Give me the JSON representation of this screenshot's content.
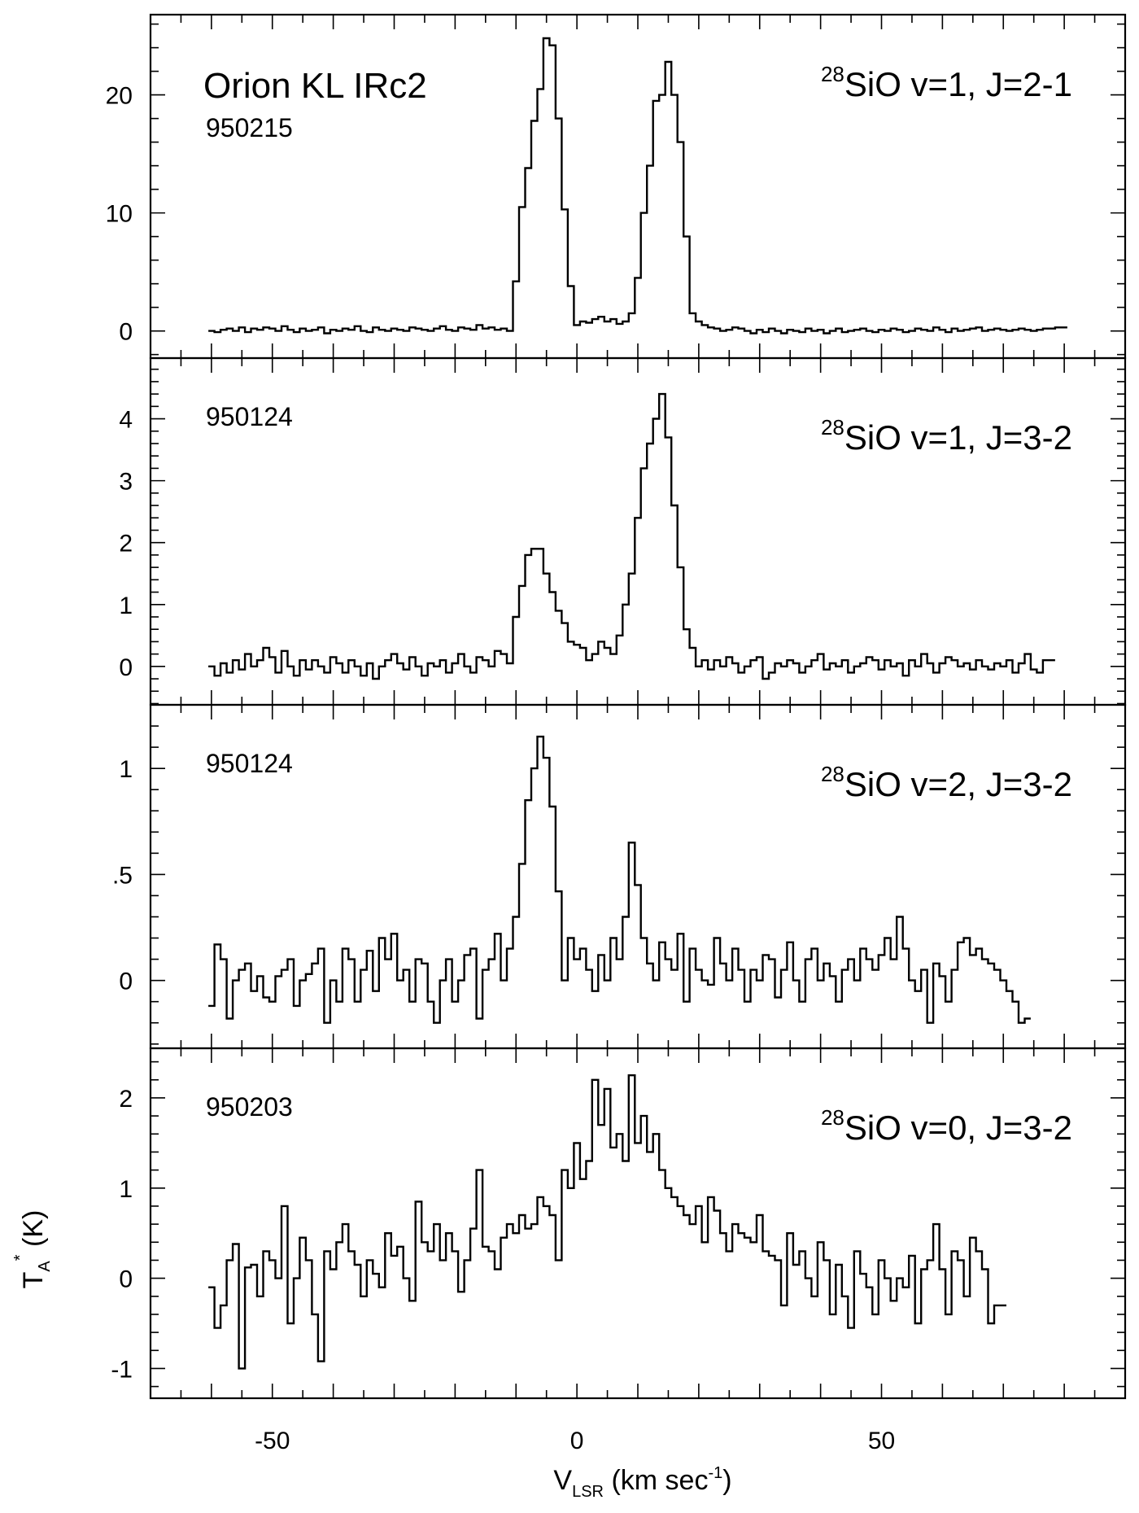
{
  "chart_data": {
    "type": "line",
    "x_axis": {
      "label_main": "V",
      "label_sub": "LSR",
      "label_rest": " (km sec",
      "label_exp": "-1",
      "label_close": ")",
      "range": [
        -70,
        90
      ],
      "tick_labels": [
        "-50",
        "0",
        "50"
      ],
      "tick_values": [
        -50,
        0,
        50
      ],
      "minor_step": 5
    },
    "y_axis_label": {
      "main": "T",
      "sub": "A",
      "sup": "*",
      "rest": " (K)"
    },
    "panels": [
      {
        "title": "Orion KL IRc2",
        "date": "950215",
        "line_iso": "28",
        "line_text": "SiO v=1, J=2-1",
        "ylim": [
          -2.3,
          26.8
        ],
        "y_ticks": [
          0,
          10,
          20
        ],
        "y_tick_labels": [
          "0",
          "10",
          "20"
        ],
        "y_minor_step": 2,
        "series": {
          "x_start": -60,
          "x_step": 1,
          "values": [
            0.0,
            -0.1,
            0.1,
            0.2,
            0.0,
            0.3,
            -0.1,
            0.2,
            0.1,
            0.3,
            0.2,
            0.0,
            0.4,
            0.1,
            -0.1,
            0.2,
            0.0,
            0.1,
            0.3,
            -0.2,
            0.1,
            0.0,
            0.2,
            0.1,
            0.4,
            0.0,
            -0.1,
            0.3,
            0.1,
            0.0,
            0.2,
            0.1,
            0.0,
            0.3,
            0.2,
            0.1,
            0.0,
            0.2,
            0.4,
            0.1,
            0.0,
            0.3,
            0.2,
            0.1,
            0.5,
            0.2,
            0.3,
            0.1,
            0.2,
            0.0,
            4.2,
            10.5,
            13.8,
            17.8,
            20.5,
            24.8,
            24.2,
            18.0,
            10.3,
            3.8,
            0.5,
            0.8,
            0.7,
            1.0,
            1.2,
            0.8,
            1.0,
            0.6,
            0.8,
            1.5,
            4.5,
            10.0,
            14.0,
            19.5,
            20.0,
            22.8,
            20.0,
            16.0,
            8.0,
            1.5,
            0.8,
            0.5,
            0.3,
            0.2,
            0.0,
            0.1,
            0.3,
            0.2,
            0.0,
            -0.2,
            0.1,
            -0.1,
            0.2,
            0.0,
            -0.2,
            0.1,
            0.0,
            -0.1,
            0.2,
            0.0,
            0.1,
            -0.2,
            0.0,
            0.2,
            -0.1,
            0.0,
            0.1,
            0.2,
            0.0,
            -0.1,
            0.1,
            0.0,
            0.2,
            0.1,
            -0.1,
            0.0,
            0.2,
            0.1,
            0.0,
            0.3,
            0.1,
            -0.1,
            0.2,
            0.0,
            0.1,
            0.2,
            0.3,
            0.0,
            0.1,
            0.2,
            0.1,
            0.0,
            0.1,
            0.2,
            0.1,
            0.0,
            0.1,
            0.2,
            0.2,
            0.3,
            0.3
          ]
        }
      },
      {
        "title": "",
        "date": "950124",
        "line_iso": "28",
        "line_text": "SiO v=1, J=3-2",
        "ylim": [
          -0.62,
          4.98
        ],
        "y_ticks": [
          0,
          1,
          2,
          3,
          4
        ],
        "y_tick_labels": [
          "0",
          "1",
          "2",
          "3",
          "4"
        ],
        "y_minor_step": 0.2,
        "series": {
          "x_start": -60,
          "x_step": 1,
          "values": [
            0.0,
            -0.15,
            0.05,
            -0.1,
            0.1,
            -0.05,
            0.2,
            0.0,
            0.1,
            0.3,
            0.15,
            -0.1,
            0.25,
            0.0,
            -0.15,
            0.1,
            -0.05,
            0.1,
            0.0,
            -0.1,
            0.15,
            0.05,
            -0.1,
            0.1,
            0.0,
            -0.15,
            0.05,
            -0.2,
            0.0,
            0.1,
            0.2,
            0.05,
            -0.05,
            0.15,
            0.0,
            -0.15,
            0.05,
            0.0,
            0.1,
            -0.1,
            0.05,
            0.2,
            0.0,
            -0.1,
            0.15,
            0.1,
            0.0,
            0.25,
            0.2,
            0.05,
            0.8,
            1.3,
            1.8,
            1.9,
            1.9,
            1.5,
            1.2,
            0.9,
            0.7,
            0.4,
            0.35,
            0.3,
            0.1,
            0.2,
            0.4,
            0.3,
            0.2,
            0.5,
            1.0,
            1.5,
            2.4,
            3.2,
            3.6,
            4.0,
            4.4,
            3.7,
            2.6,
            1.6,
            0.6,
            0.3,
            0.0,
            0.1,
            -0.05,
            0.1,
            0.0,
            0.15,
            0.05,
            -0.1,
            0.0,
            0.1,
            0.15,
            -0.2,
            -0.1,
            0.05,
            0.0,
            0.1,
            0.05,
            -0.1,
            0.0,
            0.1,
            0.2,
            -0.05,
            0.05,
            0.0,
            0.1,
            -0.1,
            0.0,
            0.05,
            0.15,
            0.1,
            -0.05,
            0.1,
            0.0,
            0.05,
            -0.15,
            0.1,
            0.0,
            0.2,
            0.05,
            -0.1,
            0.05,
            0.15,
            0.1,
            0.0,
            0.05,
            -0.05,
            0.1,
            0.0,
            -0.05,
            0.05,
            0.0,
            0.1,
            -0.1,
            0.05,
            0.2,
            -0.05,
            -0.1,
            0.1,
            0.1
          ]
        }
      },
      {
        "title": "",
        "date": "950124",
        "line_iso": "28",
        "line_text": "SiO v=2, J=3-2",
        "ylim": [
          -0.32,
          1.3
        ],
        "y_ticks": [
          0,
          0.5,
          1
        ],
        "y_tick_labels": [
          "0",
          ".5",
          "1"
        ],
        "y_minor_step": 0.1,
        "series": {
          "x_start": -60,
          "x_step": 1,
          "values": [
            -0.12,
            0.17,
            0.1,
            -0.18,
            0.0,
            0.05,
            0.08,
            -0.05,
            0.02,
            -0.08,
            -0.1,
            0.02,
            0.05,
            0.1,
            -0.12,
            0.0,
            0.03,
            0.08,
            0.15,
            -0.2,
            0.0,
            -0.1,
            0.15,
            0.1,
            -0.1,
            0.05,
            0.14,
            -0.05,
            0.2,
            0.1,
            0.22,
            0.0,
            0.05,
            -0.1,
            0.1,
            0.08,
            -0.1,
            -0.2,
            0.0,
            0.1,
            -0.1,
            0.0,
            0.12,
            0.15,
            -0.18,
            0.05,
            0.1,
            0.22,
            0.0,
            0.15,
            0.3,
            0.55,
            0.85,
            1.0,
            1.15,
            1.05,
            0.82,
            0.42,
            0.0,
            0.2,
            0.1,
            0.15,
            0.05,
            -0.05,
            0.12,
            0.0,
            0.2,
            0.1,
            0.3,
            0.65,
            0.45,
            0.2,
            0.08,
            0.0,
            0.18,
            0.1,
            0.05,
            0.22,
            -0.1,
            0.15,
            0.05,
            0.0,
            -0.02,
            0.2,
            0.08,
            0.0,
            0.15,
            0.05,
            -0.1,
            0.05,
            0.0,
            0.12,
            0.1,
            -0.08,
            0.05,
            0.18,
            0.0,
            -0.1,
            0.1,
            0.15,
            0.0,
            0.08,
            0.02,
            -0.1,
            0.05,
            0.1,
            0.0,
            0.15,
            0.1,
            0.05,
            0.12,
            0.2,
            0.1,
            0.3,
            0.15,
            0.0,
            -0.05,
            0.05,
            -0.2,
            0.08,
            0.02,
            -0.1,
            0.05,
            0.18,
            0.2,
            0.12,
            0.15,
            0.1,
            0.08,
            0.05,
            0.0,
            -0.05,
            -0.1,
            -0.2,
            -0.18
          ]
        }
      },
      {
        "title": "",
        "date": "950203",
        "line_iso": "28",
        "line_text": "SiO v=0, J=3-2",
        "ylim": [
          -1.33,
          2.55
        ],
        "y_ticks": [
          -1,
          0,
          1,
          2
        ],
        "y_tick_labels": [
          "-1",
          "0",
          "1",
          "2"
        ],
        "y_minor_step": 0.2,
        "series": {
          "x_start": -60,
          "x_step": 1,
          "values": [
            -0.1,
            -0.55,
            -0.3,
            0.2,
            0.38,
            -1.0,
            0.12,
            0.15,
            -0.2,
            0.3,
            0.2,
            0.0,
            0.8,
            -0.5,
            0.0,
            0.45,
            0.2,
            -0.4,
            -0.92,
            0.3,
            0.1,
            0.4,
            0.6,
            0.3,
            0.15,
            -0.2,
            0.2,
            0.05,
            -0.1,
            0.5,
            0.25,
            0.35,
            0.0,
            -0.25,
            0.85,
            0.4,
            0.3,
            0.6,
            0.2,
            0.5,
            0.3,
            -0.15,
            0.2,
            0.55,
            1.2,
            0.35,
            0.3,
            0.1,
            0.45,
            0.6,
            0.5,
            0.7,
            0.55,
            0.6,
            0.9,
            0.8,
            0.7,
            0.2,
            1.2,
            1.0,
            1.5,
            1.1,
            1.3,
            2.2,
            1.7,
            2.1,
            1.45,
            1.6,
            1.3,
            2.25,
            1.5,
            1.8,
            1.4,
            1.6,
            1.2,
            1.0,
            0.9,
            0.8,
            0.7,
            0.6,
            0.8,
            0.4,
            0.9,
            0.75,
            0.5,
            0.3,
            0.6,
            0.5,
            0.45,
            0.4,
            0.7,
            0.3,
            0.25,
            0.2,
            -0.3,
            0.5,
            0.15,
            0.3,
            0.0,
            -0.2,
            0.4,
            0.2,
            -0.4,
            0.15,
            -0.2,
            -0.55,
            0.3,
            0.05,
            -0.1,
            -0.4,
            0.2,
            0.0,
            -0.25,
            0.0,
            -0.1,
            0.25,
            -0.5,
            0.1,
            0.2,
            0.6,
            0.1,
            -0.4,
            0.3,
            0.2,
            -0.2,
            0.45,
            0.3,
            0.1,
            -0.5,
            -0.3,
            -0.3
          ]
        }
      }
    ]
  }
}
